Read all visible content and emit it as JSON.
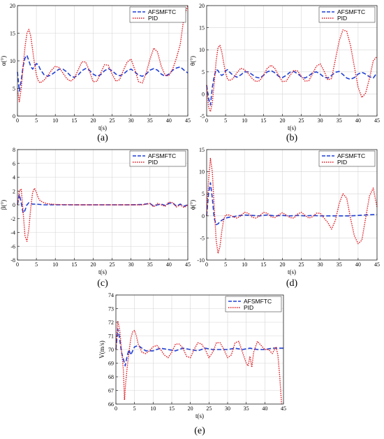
{
  "colors": {
    "afsmftc": "#1f3fd6",
    "pid": "#e0141c",
    "grid": "#d6d6d6"
  },
  "chart_data": [
    {
      "id": "a",
      "type": "line",
      "caption": "(a)",
      "xlabel": "t(s)",
      "ylabel": "α(°)",
      "xlim": [
        0,
        45
      ],
      "ylim": [
        0,
        20
      ],
      "xticks": [
        0,
        5,
        10,
        15,
        20,
        25,
        30,
        35,
        40,
        45
      ],
      "yticks": [
        0,
        5,
        10,
        15,
        20
      ],
      "grid": true,
      "legend": "top-right",
      "series": [
        {
          "name": "AFSMFTC",
          "style": "dashed",
          "x": [
            0,
            0.5,
            1,
            1.5,
            2,
            2.5,
            3,
            3.5,
            4,
            4.5,
            5,
            5.5,
            6,
            7,
            8,
            9,
            10,
            11,
            12,
            13,
            14,
            15,
            16,
            17,
            18,
            19,
            20,
            21,
            22,
            23,
            24,
            25,
            26,
            27,
            28,
            29,
            30,
            31,
            32,
            33,
            34,
            35,
            36,
            37,
            38,
            39,
            40,
            41,
            42,
            43,
            44,
            45
          ],
          "y": [
            8,
            4.5,
            6.5,
            9,
            10.5,
            11,
            10,
            9,
            8.5,
            9,
            9.5,
            9.3,
            8.5,
            7.5,
            7.2,
            7.5,
            8,
            8.5,
            8.5,
            8,
            7.3,
            7,
            7.4,
            8.2,
            8.6,
            8.3,
            7.6,
            7.2,
            7.5,
            8.2,
            8.6,
            8.2,
            7.6,
            7.3,
            7.6,
            8.2,
            8.5,
            8,
            7.4,
            7.2,
            7.6,
            8.3,
            8.6,
            8.3,
            7.6,
            7.2,
            7.6,
            8.3,
            8.7,
            8.9,
            8.3,
            7.8
          ]
        },
        {
          "name": "PID",
          "style": "dotted",
          "x": [
            0,
            0.5,
            1,
            1.5,
            2,
            2.5,
            3,
            3.5,
            4,
            4.5,
            5,
            5.5,
            6,
            7,
            8,
            9,
            10,
            11,
            12,
            13,
            14,
            15,
            16,
            17,
            18,
            19,
            20,
            21,
            22,
            23,
            24,
            25,
            26,
            27,
            28,
            29,
            30,
            31,
            32,
            33,
            34,
            35,
            36,
            37,
            38,
            39,
            40,
            41,
            42,
            43,
            43.5,
            44,
            45
          ],
          "y": [
            5,
            2.6,
            5,
            9,
            12.5,
            15,
            15.7,
            14.5,
            12,
            9.5,
            7.5,
            6.4,
            6,
            6.5,
            7.3,
            8.3,
            9,
            8.8,
            7.8,
            6.8,
            6.3,
            6.8,
            8.3,
            9.8,
            9.8,
            8.2,
            6.2,
            6.3,
            7.8,
            9.3,
            9.2,
            7.6,
            6.3,
            6.6,
            8.3,
            9.8,
            10.3,
            8.4,
            6.2,
            6,
            7.8,
            10.3,
            12.3,
            11.6,
            9,
            7.4,
            7.3,
            8.5,
            10.5,
            13,
            15.5,
            18,
            20
          ]
        }
      ]
    },
    {
      "id": "b",
      "type": "line",
      "caption": "(b)",
      "xlabel": "t(s)",
      "ylabel": "θ(°)",
      "xlim": [
        0,
        45
      ],
      "ylim": [
        -5,
        20
      ],
      "xticks": [
        0,
        5,
        10,
        15,
        20,
        25,
        30,
        35,
        40,
        45
      ],
      "yticks": [
        -5,
        0,
        5,
        10,
        15,
        20
      ],
      "grid": true,
      "legend": "top-right",
      "series": [
        {
          "name": "AFSMFTC",
          "style": "dashed",
          "x": [
            0,
            0.5,
            1,
            1.5,
            2,
            2.5,
            3,
            3.5,
            4,
            4.5,
            5,
            5.5,
            6,
            7,
            8,
            9,
            10,
            11,
            12,
            13,
            14,
            15,
            16,
            17,
            18,
            19,
            20,
            21,
            22,
            23,
            24,
            25,
            26,
            27,
            28,
            29,
            30,
            31,
            32,
            33,
            34,
            35,
            36,
            37,
            38,
            39,
            40,
            41,
            42,
            43,
            44,
            45
          ],
          "y": [
            2,
            -1,
            -2.5,
            1.5,
            4,
            5.5,
            5.3,
            4.5,
            4.2,
            4.5,
            5.2,
            5.5,
            5,
            4.2,
            3.8,
            4.3,
            5,
            5,
            4.4,
            3.8,
            3.6,
            4.2,
            5,
            5.3,
            4.8,
            4,
            3.7,
            4.2,
            4.9,
            5.1,
            4.6,
            3.9,
            3.6,
            4.1,
            4.8,
            5,
            4.5,
            3.8,
            3.6,
            4.2,
            4.9,
            5.1,
            4.4,
            3.6,
            3.3,
            3.7,
            4.5,
            4.9,
            4.5,
            3.9,
            3.6,
            4.8
          ]
        },
        {
          "name": "PID",
          "style": "dotted",
          "x": [
            0,
            0.5,
            1,
            1.5,
            2,
            2.5,
            3,
            3.5,
            4,
            4.5,
            5,
            5.5,
            6,
            7,
            8,
            9,
            10,
            11,
            12,
            13,
            14,
            15,
            16,
            17,
            18,
            19,
            20,
            21,
            22,
            23,
            24,
            25,
            26,
            27,
            28,
            29,
            30,
            31,
            32,
            33,
            34,
            35,
            36,
            37,
            38,
            39,
            40,
            41,
            42,
            43,
            44,
            45
          ],
          "y": [
            2,
            -3,
            -4,
            -2,
            2.5,
            7.5,
            10.5,
            11,
            9.5,
            7,
            4.8,
            3.4,
            3,
            3.5,
            4.8,
            5.8,
            5.5,
            4.6,
            3.5,
            2.8,
            3,
            4.2,
            5.8,
            6.5,
            5.8,
            4.2,
            2.8,
            2.9,
            4.2,
            5.3,
            5.2,
            4,
            2.9,
            3,
            4.6,
            6.3,
            6.8,
            5.2,
            3.2,
            3.5,
            7.8,
            12,
            14.5,
            14.2,
            11,
            6.2,
            1.5,
            -0.8,
            0.2,
            3.5,
            7.5,
            8.5
          ]
        }
      ]
    },
    {
      "id": "c",
      "type": "line",
      "caption": "(c)",
      "xlabel": "t(s)",
      "ylabel": "β(°)",
      "xlim": [
        0,
        45
      ],
      "ylim": [
        -8,
        8
      ],
      "xticks": [
        0,
        5,
        10,
        15,
        20,
        25,
        30,
        35,
        40,
        45
      ],
      "yticks": [
        -8,
        -6,
        -4,
        -2,
        0,
        2,
        4,
        6,
        8
      ],
      "grid": true,
      "legend": "top-right",
      "series": [
        {
          "name": "AFSMFTC",
          "style": "dashed",
          "x": [
            0,
            0.5,
            1,
            1.5,
            2,
            2.5,
            3,
            3.5,
            4,
            5,
            6,
            7,
            8,
            10,
            15,
            20,
            25,
            30,
            33,
            35,
            36,
            37,
            38,
            39,
            40,
            41,
            42,
            43,
            44,
            45
          ],
          "y": [
            0,
            1.5,
            0.3,
            -1.2,
            -0.8,
            0,
            0.3,
            0.2,
            0.1,
            0.1,
            0.05,
            0,
            0,
            0,
            0,
            0,
            0,
            0,
            0.05,
            0.2,
            -0.2,
            0,
            0.1,
            -0.1,
            0.2,
            0.3,
            -0.2,
            0.1,
            -0.2,
            0
          ]
        },
        {
          "name": "PID",
          "style": "dotted",
          "x": [
            0,
            0.5,
            1,
            1.5,
            2,
            2.5,
            3,
            3.5,
            4,
            4.5,
            5,
            5.5,
            6,
            7,
            8,
            10,
            15,
            20,
            25,
            30,
            33,
            35,
            36,
            37,
            38,
            39,
            40,
            41,
            42,
            43,
            44,
            45
          ],
          "y": [
            0,
            2,
            2.3,
            -1,
            -4.5,
            -5.3,
            -3.5,
            -0.5,
            1.8,
            2.4,
            1.8,
            1,
            0.6,
            0.3,
            0.15,
            0.05,
            0,
            0,
            0,
            0,
            0,
            0.2,
            -0.3,
            0.2,
            0,
            -0.2,
            0.4,
            0.3,
            -0.3,
            0,
            -0.4,
            0
          ]
        }
      ]
    },
    {
      "id": "d",
      "type": "line",
      "caption": "(d)",
      "xlabel": "t(s)",
      "ylabel": "ϕ(°)",
      "xlim": [
        0,
        45
      ],
      "ylim": [
        -10,
        15
      ],
      "xticks": [
        0,
        5,
        10,
        15,
        20,
        25,
        30,
        35,
        40,
        45
      ],
      "yticks": [
        -10,
        -5,
        0,
        5,
        10,
        15
      ],
      "grid": true,
      "legend": "top-right",
      "series": [
        {
          "name": "AFSMFTC",
          "style": "dashed",
          "x": [
            0,
            0.5,
            1,
            1.5,
            2,
            2.5,
            3,
            3.5,
            4,
            5,
            6,
            7,
            8,
            10,
            12,
            14,
            16,
            18,
            20,
            22,
            24,
            26,
            28,
            30,
            32,
            34,
            36,
            38,
            40,
            42,
            44,
            45
          ],
          "y": [
            0,
            5,
            7.5,
            4,
            -0.5,
            -2,
            -1.8,
            -1.3,
            -1,
            -0.5,
            -0.3,
            -0.2,
            0,
            0.2,
            0.1,
            0,
            0.2,
            0,
            0.1,
            0,
            0.1,
            0,
            0.1,
            0,
            0,
            0,
            0,
            0,
            0.1,
            0.2,
            0.3,
            0.3
          ]
        },
        {
          "name": "PID",
          "style": "dotted",
          "x": [
            0,
            0.5,
            1,
            1.5,
            2,
            2.5,
            3,
            3.5,
            4,
            4.5,
            5,
            6,
            7,
            8,
            9,
            10,
            11,
            12,
            13,
            14,
            15,
            16,
            17,
            18,
            19,
            20,
            21,
            22,
            23,
            24,
            25,
            26,
            27,
            28,
            29,
            30,
            31,
            32,
            33,
            34,
            35,
            36,
            37,
            38,
            39,
            40,
            41,
            42,
            43,
            44,
            45
          ],
          "y": [
            0,
            8,
            13,
            10,
            2,
            -5.5,
            -8.5,
            -7,
            -3.5,
            -0.8,
            0.2,
            0.2,
            -0.2,
            -0.5,
            0,
            0.8,
            0.6,
            -0.3,
            -0.5,
            0,
            0.8,
            0.6,
            -0.2,
            -0.4,
            0.2,
            0.7,
            0.2,
            -0.4,
            -0.5,
            0.4,
            0.8,
            0.1,
            -0.5,
            -0.2,
            0.6,
            0.6,
            -0.5,
            -1.5,
            -3,
            -1,
            2.8,
            5,
            4,
            -0.5,
            -4.5,
            -6.3,
            -5.5,
            -0.5,
            4.5,
            6.3,
            2
          ]
        }
      ]
    },
    {
      "id": "e",
      "type": "line",
      "caption": "(e)",
      "xlabel": "t(s)",
      "ylabel": "V(m/s)",
      "xlim": [
        0,
        45
      ],
      "ylim": [
        66,
        74
      ],
      "xticks": [
        0,
        5,
        10,
        15,
        20,
        25,
        30,
        35,
        40,
        45
      ],
      "yticks": [
        66,
        67,
        68,
        69,
        70,
        71,
        72,
        73,
        74
      ],
      "grid": true,
      "legend": "top-right",
      "series": [
        {
          "name": "AFSMFTC",
          "style": "dashed",
          "x": [
            0,
            0.5,
            1,
            1.5,
            2,
            2.5,
            3,
            3.5,
            4,
            5,
            6,
            7,
            8,
            10,
            12,
            14,
            16,
            18,
            20,
            22,
            24,
            26,
            28,
            30,
            32,
            34,
            36,
            38,
            40,
            42,
            44,
            45
          ],
          "y": [
            70,
            71.5,
            70.8,
            69.8,
            69.3,
            68.8,
            69.5,
            70,
            69.6,
            70.2,
            70.3,
            70.1,
            69.9,
            69.9,
            70.1,
            70,
            69.9,
            70.1,
            70,
            69.9,
            70.1,
            70,
            70,
            70,
            70.1,
            70,
            70.1,
            70,
            70,
            70.1,
            70.1,
            70.1
          ]
        },
        {
          "name": "PID",
          "style": "dotted",
          "x": [
            0,
            0.5,
            1,
            1.5,
            2,
            2.3,
            2.6,
            3,
            3.5,
            4,
            4.5,
            5,
            5.5,
            6,
            7,
            8,
            9,
            10,
            11,
            12,
            13,
            14,
            15,
            16,
            17,
            18,
            19,
            20,
            21,
            22,
            23,
            24,
            25,
            26,
            27,
            28,
            29,
            30,
            31,
            32,
            33,
            34,
            35,
            35.5,
            36,
            36.5,
            37,
            38,
            39,
            40,
            41,
            42,
            43,
            43.5,
            44,
            44.5
          ],
          "y": [
            70,
            72.1,
            71.5,
            70,
            68.5,
            66.3,
            67.5,
            68.6,
            69.8,
            70.8,
            71.3,
            71.4,
            71,
            70.4,
            69.8,
            69.7,
            69.9,
            70.2,
            70.3,
            70,
            69.6,
            69.4,
            69.8,
            70.4,
            70.4,
            70.1,
            69.5,
            69.4,
            70,
            70.5,
            70.4,
            70,
            69.4,
            69.8,
            70.5,
            70.5,
            70,
            69.4,
            69.6,
            70.5,
            70.6,
            69.8,
            69,
            68.8,
            69.5,
            68.7,
            69.8,
            70.6,
            70.3,
            70,
            70,
            69.7,
            70.2,
            69.6,
            68,
            66
          ]
        }
      ]
    }
  ]
}
